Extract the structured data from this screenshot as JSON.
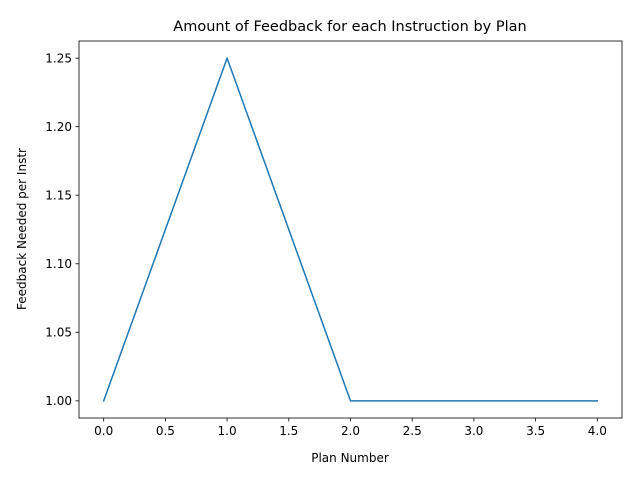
{
  "chart_data": {
    "type": "line",
    "title": "Amount of Feedback for each Instruction by Plan",
    "xlabel": "Plan Number",
    "ylabel": "Feedback Needed per Instr",
    "x": [
      0,
      1,
      2,
      3,
      4
    ],
    "series": [
      {
        "values": [
          1.0,
          1.25,
          1.0,
          1.0,
          1.0
        ],
        "color": "#1f77b4"
      }
    ],
    "xlim": [
      -0.2,
      4.2
    ],
    "ylim": [
      0.9875,
      1.2625
    ],
    "xticks": [
      0.0,
      0.5,
      1.0,
      1.5,
      2.0,
      2.5,
      3.0,
      3.5,
      4.0
    ],
    "xtick_labels": [
      "0.0",
      "0.5",
      "1.0",
      "1.5",
      "2.0",
      "2.5",
      "3.0",
      "3.5",
      "4.0"
    ],
    "yticks": [
      1.0,
      1.05,
      1.1,
      1.15,
      1.2,
      1.25
    ],
    "ytick_labels": [
      "1.00",
      "1.05",
      "1.10",
      "1.15",
      "1.20",
      "1.25"
    ],
    "grid": false,
    "legend": "none"
  }
}
